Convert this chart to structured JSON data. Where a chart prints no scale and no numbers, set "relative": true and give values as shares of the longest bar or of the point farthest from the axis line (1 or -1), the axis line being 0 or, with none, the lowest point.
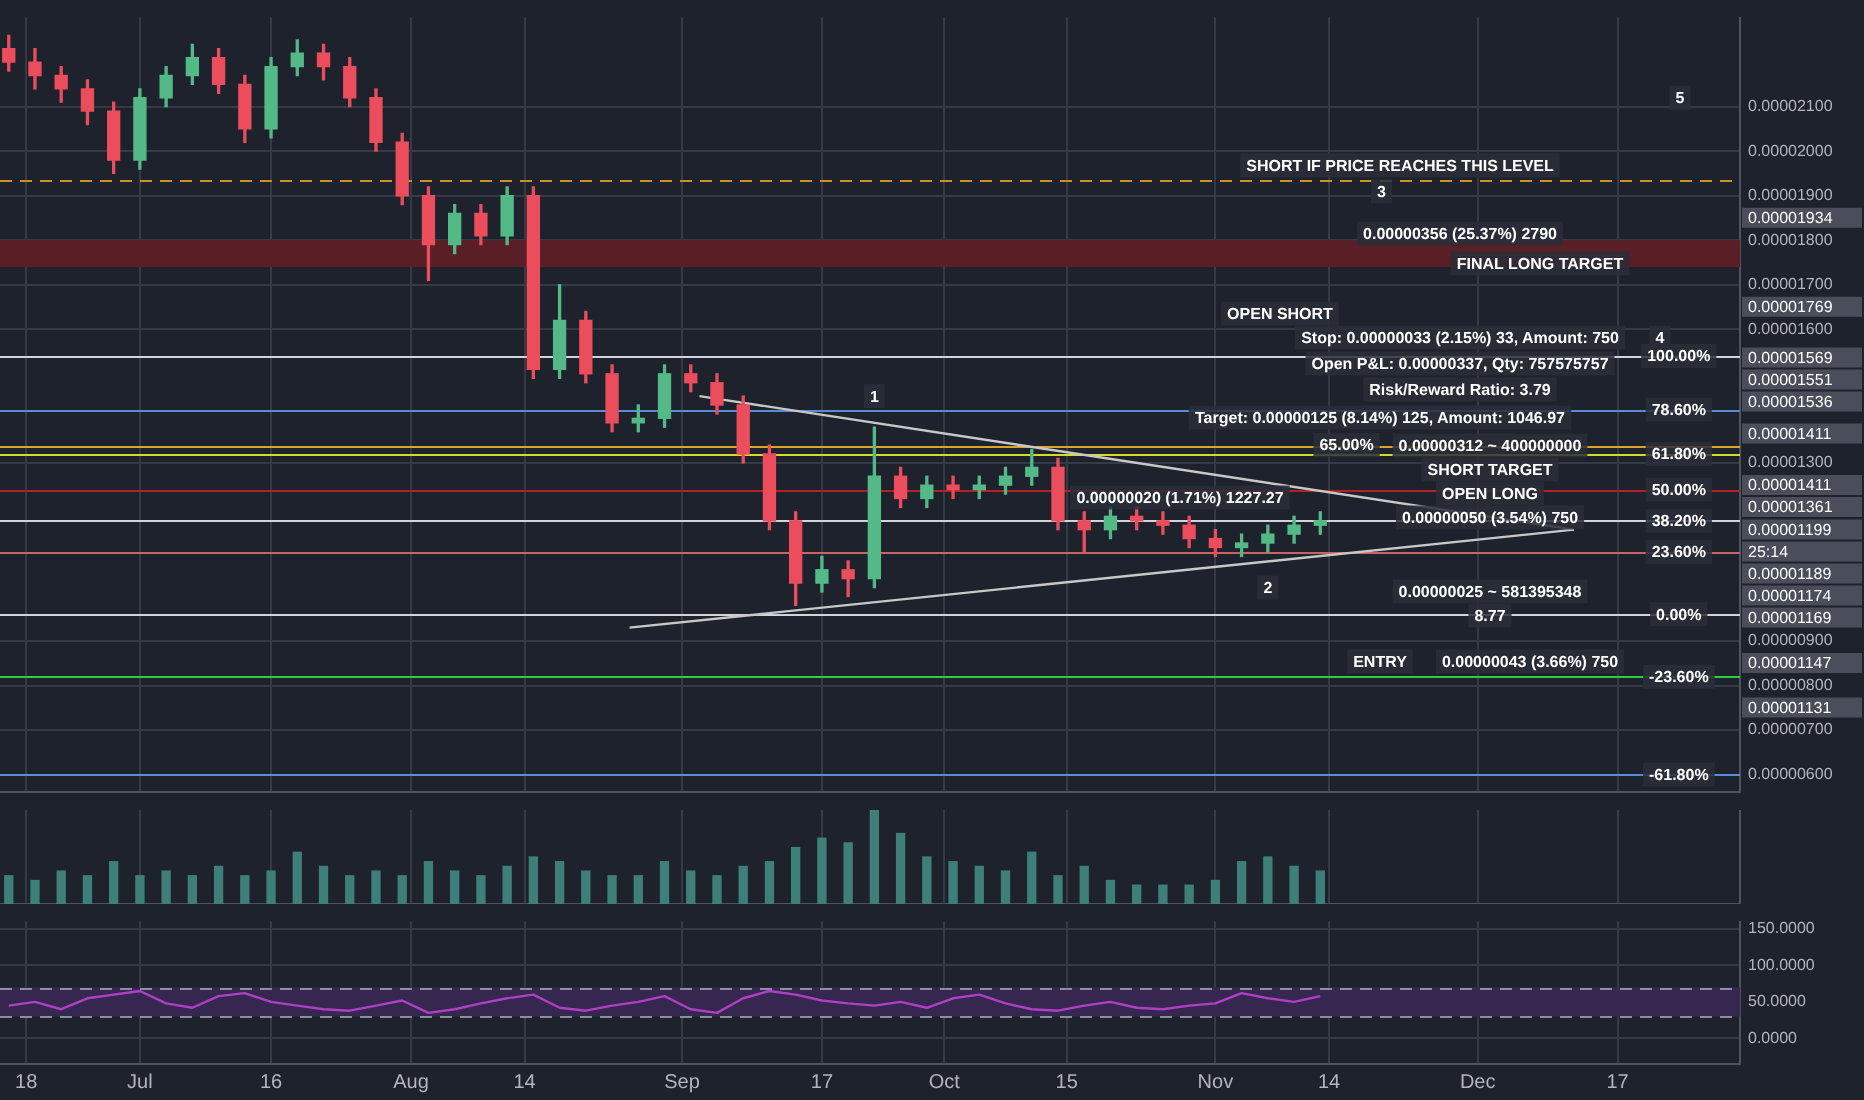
{
  "chart_data": [
    {
      "type": "candlestick",
      "x": [
        "--06-16",
        "--06-19",
        "--06-22",
        "--06-25",
        "--06-28",
        "--07-01",
        "--07-04",
        "--07-07",
        "--07-10",
        "--07-13",
        "--07-16",
        "--07-19",
        "--07-22",
        "--07-25",
        "--07-28",
        "--07-31",
        "--08-03",
        "--08-06",
        "--08-09",
        "--08-12",
        "--08-15",
        "--08-18",
        "--08-21",
        "--08-24",
        "--08-27",
        "--08-30",
        "--09-02",
        "--09-05",
        "--09-08",
        "--09-11",
        "--09-14",
        "--09-17",
        "--09-20",
        "--09-23",
        "--09-26",
        "--09-29",
        "--10-02",
        "--10-05",
        "--10-08",
        "--10-11",
        "--10-14",
        "--10-17",
        "--10-20",
        "--10-23",
        "--10-26",
        "--10-29",
        "--11-01",
        "--11-04",
        "--11-07",
        "--11-10",
        "--11-13"
      ],
      "ohlc": [
        [
          2.23e-05,
          2.26e-05,
          2.18e-05,
          2.2e-05
        ],
        [
          2.2e-05,
          2.23e-05,
          2.14e-05,
          2.17e-05
        ],
        [
          2.17e-05,
          2.19e-05,
          2.11e-05,
          2.14e-05
        ],
        [
          2.14e-05,
          2.16e-05,
          2.06e-05,
          2.09e-05
        ],
        [
          2.09e-05,
          2.11e-05,
          1.95e-05,
          1.98e-05
        ],
        [
          1.98e-05,
          2.14e-05,
          1.96e-05,
          2.12e-05
        ],
        [
          2.12e-05,
          2.19e-05,
          2.1e-05,
          2.17e-05
        ],
        [
          2.17e-05,
          2.24e-05,
          2.15e-05,
          2.21e-05
        ],
        [
          2.21e-05,
          2.23e-05,
          2.13e-05,
          2.15e-05
        ],
        [
          2.15e-05,
          2.17e-05,
          2.02e-05,
          2.05e-05
        ],
        [
          2.05e-05,
          2.21e-05,
          2.03e-05,
          2.19e-05
        ],
        [
          2.19e-05,
          2.25e-05,
          2.17e-05,
          2.22e-05
        ],
        [
          2.22e-05,
          2.24e-05,
          2.16e-05,
          2.19e-05
        ],
        [
          2.19e-05,
          2.21e-05,
          2.1e-05,
          2.12e-05
        ],
        [
          2.12e-05,
          2.14e-05,
          2e-05,
          2.02e-05
        ],
        [
          2.02e-05,
          2.04e-05,
          1.88e-05,
          1.9e-05
        ],
        [
          1.9e-05,
          1.92e-05,
          1.71e-05,
          1.79e-05
        ],
        [
          1.79e-05,
          1.88e-05,
          1.77e-05,
          1.86e-05
        ],
        [
          1.86e-05,
          1.88e-05,
          1.79e-05,
          1.81e-05
        ],
        [
          1.81e-05,
          1.92e-05,
          1.79e-05,
          1.9e-05
        ],
        [
          1.9e-05,
          1.92e-05,
          1.49e-05,
          1.51e-05
        ],
        [
          1.51e-05,
          1.7e-05,
          1.49e-05,
          1.62e-05
        ],
        [
          1.62e-05,
          1.64e-05,
          1.48e-05,
          1.5e-05
        ],
        [
          1.5e-05,
          1.52e-05,
          1.37e-05,
          1.39e-05
        ],
        [
          1.39e-05,
          1.43e-05,
          1.37e-05,
          1.4e-05
        ],
        [
          1.4e-05,
          1.52e-05,
          1.38e-05,
          1.5e-05
        ],
        [
          1.5e-05,
          1.52e-05,
          1.46e-05,
          1.48e-05
        ],
        [
          1.48e-05,
          1.5e-05,
          1.41e-05,
          1.43e-05
        ],
        [
          1.43e-05,
          1.45e-05,
          1.3e-05,
          1.32e-05
        ],
        [
          1.32e-05,
          1.34e-05,
          1.15e-05,
          1.17e-05
        ],
        [
          1.17e-05,
          1.19e-05,
          9.8e-06,
          1.03e-05
        ],
        [
          1.03e-05,
          1.09e-05,
          1.01e-05,
          1.06e-05
        ],
        [
          1.06e-05,
          1.08e-05,
          1e-05,
          1.04e-05
        ],
        [
          1.04e-05,
          1.38e-05,
          1.02e-05,
          1.27e-05
        ],
        [
          1.27e-05,
          1.29e-05,
          1.2e-05,
          1.22e-05
        ],
        [
          1.22e-05,
          1.27e-05,
          1.2e-05,
          1.25e-05
        ],
        [
          1.25e-05,
          1.27e-05,
          1.22e-05,
          1.24e-05
        ],
        [
          1.24e-05,
          1.27e-05,
          1.22e-05,
          1.25e-05
        ],
        [
          1.25e-05,
          1.29e-05,
          1.23e-05,
          1.27e-05
        ],
        [
          1.27e-05,
          1.33e-05,
          1.25e-05,
          1.29e-05
        ],
        [
          1.29e-05,
          1.31e-05,
          1.15e-05,
          1.17e-05
        ],
        [
          1.17e-05,
          1.19e-05,
          1.1e-05,
          1.15e-05
        ],
        [
          1.15e-05,
          1.2e-05,
          1.13e-05,
          1.18e-05
        ],
        [
          1.18e-05,
          1.2e-05,
          1.15e-05,
          1.17e-05
        ],
        [
          1.17e-05,
          1.19e-05,
          1.14e-05,
          1.16e-05
        ],
        [
          1.16e-05,
          1.18e-05,
          1.11e-05,
          1.13e-05
        ],
        [
          1.13e-05,
          1.15e-05,
          1.09e-05,
          1.11e-05
        ],
        [
          1.11e-05,
          1.14e-05,
          1.09e-05,
          1.12e-05
        ],
        [
          1.12e-05,
          1.16e-05,
          1.1e-05,
          1.14e-05
        ],
        [
          1.14e-05,
          1.18e-05,
          1.12e-05,
          1.16e-05
        ],
        [
          1.16e-05,
          1.19e-05,
          1.14e-05,
          1.17e-05
        ]
      ],
      "series": [
        {
          "type": "line",
          "x": [
            "--09-03",
            "--12-12"
          ],
          "values": [
            1.45e-05,
            1.15e-05
          ],
          "color": "#c8c8c8"
        },
        {
          "type": "line",
          "x": [
            "--08-26",
            "--12-12"
          ],
          "values": [
            9.3e-06,
            1.15e-05
          ],
          "color": "#c8c8c8"
        }
      ],
      "xlim": [
        "--06-15",
        "--12-31"
      ],
      "xticks": [
        {
          "value": "--06-18",
          "label": null
        },
        {
          "value": "--07-01",
          "label": null
        },
        {
          "value": "--07-16",
          "label": null
        },
        {
          "value": "--08-01",
          "label": null
        },
        {
          "value": "--08-14",
          "label": null
        },
        {
          "value": "--09-01",
          "label": null
        },
        {
          "value": "--09-17",
          "label": null
        },
        {
          "value": "--10-01",
          "label": null
        },
        {
          "value": "--10-15",
          "label": null
        },
        {
          "value": "--11-01",
          "label": null
        },
        {
          "value": "--11-14",
          "label": null
        },
        {
          "value": "--12-01",
          "label": null
        },
        {
          "value": "--12-17",
          "label": null
        }
      ],
      "ylim": [
        5.6e-06,
        2.3e-05
      ],
      "yticks": [
        {
          "value": 2.1e-05,
          "label": "0.00002100"
        },
        {
          "value": 2e-05,
          "label": "0.00002000"
        },
        {
          "value": 1.9e-05,
          "label": "0.00001900"
        },
        {
          "value": 1.8e-05,
          "label": "0.00001800"
        },
        {
          "value": 1.7e-05,
          "label": "0.00001700"
        },
        {
          "value": 1.6e-05,
          "label": "0.00001600"
        },
        {
          "value": 1.3e-05,
          "label": "0.00001300"
        },
        {
          "value": 9e-06,
          "label": "0.00000900"
        },
        {
          "value": 8e-06,
          "label": "0.00000800"
        },
        {
          "value": 7e-06,
          "label": "0.00000700"
        },
        {
          "value": 6e-06,
          "label": "0.00000600"
        }
      ],
      "grid": true,
      "tick_labels": "y",
      "ref_lines": [
        {
          "axis": "y",
          "value": 1.934e-05,
          "color": "#c8912a",
          "line_style": "dashed"
        },
        {
          "axis": "y",
          "value": 1.54e-05,
          "color": "#d1d4dc"
        },
        {
          "axis": "y",
          "value": 1.42e-05,
          "color": "#5b8bd0"
        },
        {
          "axis": "y",
          "value": 1.34e-05,
          "color": "#d9a62a"
        },
        {
          "axis": "y",
          "value": 1.32e-05,
          "color": "#d9d92a"
        },
        {
          "axis": "y",
          "value": 1.24e-05,
          "color": "#b22222"
        },
        {
          "axis": "y",
          "value": 1.17e-05,
          "color": "#d1d4dc"
        },
        {
          "axis": "y",
          "value": 1.1e-05,
          "color": "#c86464"
        },
        {
          "axis": "y",
          "value": 9.6e-06,
          "color": "#d1d4dc"
        },
        {
          "axis": "y",
          "value": 8.2e-06,
          "color": "#2ecc40"
        },
        {
          "axis": "y",
          "value": 6e-06,
          "color": "#5b8bd0"
        }
      ],
      "bands": [
        {
          "axis": "y",
          "from": 1.74e-05,
          "to": 1.8e-05,
          "color": "#5a1e27"
        }
      ],
      "annotations": [
        {
          "text": "100.00%",
          "x": "--12-24",
          "y": 1.54e-05
        },
        {
          "text": "78.60%",
          "x": "--12-24",
          "y": 1.42e-05
        },
        {
          "text": "65.00%",
          "x": "--11-16",
          "y": 1.34e-05
        },
        {
          "text": "61.80%",
          "x": "--12-24",
          "y": 1.32e-05
        },
        {
          "text": "50.00%",
          "x": "--12-24",
          "y": 1.24e-05
        },
        {
          "text": "38.20%",
          "x": "--12-24",
          "y": 1.17e-05
        },
        {
          "text": "23.60%",
          "x": "--12-24",
          "y": 1.1e-05
        },
        {
          "text": "0.00%",
          "x": "--12-24",
          "y": 9.6e-06
        },
        {
          "text": "-23.60%",
          "x": "--12-24",
          "y": 8.2e-06
        },
        {
          "text": "-61.80%",
          "x": "--12-24",
          "y": 6e-06
        },
        {
          "text": "3",
          "x": "--11-20",
          "y": 1.91e-05
        },
        {
          "text": "1",
          "x": "--09-23",
          "y": 1.45e-05
        },
        {
          "text": "2",
          "x": "--11-07",
          "y": 1.02e-05
        },
        "SHORT IF PRICE REACHES THIS LEVEL",
        "0.00000356 (25.37%) 2790",
        "FINAL LONG TARGET",
        "5",
        "4",
        "OPEN SHORT",
        "Stop: 0.00000033 (2.15%) 33, Amount: 750",
        "Open P&L: 0.00000337, Qty: 757575757",
        "Risk/Reward Ratio: 3.79",
        "Target: 0.00000125 (8.14%) 125, Amount: 1046.97",
        "0.00000312 ~ 400000000",
        "SHORT TARGET",
        "OPEN LONG",
        "0.00000050 (3.54%) 750",
        "0.00000020 (1.71%) 1227.27",
        "0.00000025 ~ 581395348",
        "8.77",
        "ENTRY",
        "0.00000043 (3.66%) 750",
        "0.00001934",
        "0.00001769",
        "0.00001569",
        "0.00001551",
        "0.00001536",
        "0.00001411",
        "0.00001411",
        "0.00001361",
        "0.00001199",
        "25:14",
        "0.00001189",
        "0.00001174",
        "0.00001169",
        "0.00001147",
        "0.00001131"
      ]
    },
    {
      "type": "bar",
      "relative": true,
      "color": "#3f7f7a",
      "x": [
        "--06-16",
        "--06-19",
        "--06-22",
        "--06-25",
        "--06-28",
        "--07-01",
        "--07-04",
        "--07-07",
        "--07-10",
        "--07-13",
        "--07-16",
        "--07-19",
        "--07-22",
        "--07-25",
        "--07-28",
        "--07-31",
        "--08-03",
        "--08-06",
        "--08-09",
        "--08-12",
        "--08-15",
        "--08-18",
        "--08-21",
        "--08-24",
        "--08-27",
        "--08-30",
        "--09-02",
        "--09-05",
        "--09-08",
        "--09-11",
        "--09-14",
        "--09-17",
        "--09-20",
        "--09-23",
        "--09-26",
        "--09-29",
        "--10-02",
        "--10-05",
        "--10-08",
        "--10-11",
        "--10-14",
        "--10-17",
        "--10-20",
        "--10-23",
        "--10-26",
        "--10-29",
        "--11-01",
        "--11-04",
        "--11-07",
        "--11-10",
        "--11-13"
      ],
      "values": [
        0.3,
        0.25,
        0.35,
        0.3,
        0.45,
        0.3,
        0.35,
        0.3,
        0.4,
        0.3,
        0.35,
        0.55,
        0.4,
        0.3,
        0.35,
        0.3,
        0.45,
        0.35,
        0.3,
        0.4,
        0.5,
        0.45,
        0.35,
        0.3,
        0.3,
        0.45,
        0.35,
        0.3,
        0.4,
        0.45,
        0.6,
        0.7,
        0.65,
        1,
        0.75,
        0.5,
        0.45,
        0.4,
        0.35,
        0.55,
        0.3,
        0.4,
        0.25,
        0.2,
        0.2,
        0.2,
        0.25,
        0.45,
        0.5,
        0.4,
        0.35
      ],
      "xlim": [
        "--06-15",
        "--12-31"
      ],
      "xticks": [
        {
          "value": "--06-18",
          "label": null
        },
        {
          "value": "--07-01",
          "label": null
        },
        {
          "value": "--07-16",
          "label": null
        },
        {
          "value": "--08-01",
          "label": null
        },
        {
          "value": "--08-14",
          "label": null
        },
        {
          "value": "--09-01",
          "label": null
        },
        {
          "value": "--09-17",
          "label": null
        },
        {
          "value": "--10-01",
          "label": null
        },
        {
          "value": "--10-15",
          "label": null
        },
        {
          "value": "--11-01",
          "label": null
        },
        {
          "value": "--11-14",
          "label": null
        },
        {
          "value": "--12-01",
          "label": null
        },
        {
          "value": "--12-17",
          "label": null
        }
      ],
      "grid": "x",
      "tick_labels": false
    },
    {
      "type": "line",
      "color": "#b03fc5",
      "x": [
        "--06-16",
        "--06-19",
        "--06-22",
        "--06-25",
        "--06-28",
        "--07-01",
        "--07-04",
        "--07-07",
        "--07-10",
        "--07-13",
        "--07-16",
        "--07-19",
        "--07-22",
        "--07-25",
        "--07-28",
        "--07-31",
        "--08-03",
        "--08-06",
        "--08-09",
        "--08-12",
        "--08-15",
        "--08-18",
        "--08-21",
        "--08-24",
        "--08-27",
        "--08-30",
        "--09-02",
        "--09-05",
        "--09-08",
        "--09-11",
        "--09-14",
        "--09-17",
        "--09-20",
        "--09-23",
        "--09-26",
        "--09-29",
        "--10-02",
        "--10-05",
        "--10-08",
        "--10-11",
        "--10-14",
        "--10-17",
        "--10-20",
        "--10-23",
        "--10-26",
        "--10-29",
        "--11-01",
        "--11-04",
        "--11-07",
        "--11-10",
        "--11-13"
      ],
      "values": [
        45,
        50,
        40,
        55,
        60,
        65,
        48,
        42,
        58,
        62,
        50,
        45,
        40,
        38,
        45,
        52,
        35,
        40,
        48,
        55,
        60,
        42,
        38,
        45,
        50,
        58,
        40,
        35,
        55,
        65,
        60,
        52,
        48,
        45,
        50,
        42,
        55,
        60,
        48,
        40,
        38,
        45,
        50,
        42,
        40,
        45,
        48,
        62,
        55,
        50,
        58
      ],
      "xlim": [
        "--06-15",
        "--12-31"
      ],
      "xticks": [
        {
          "value": "--06-18",
          "label": "18"
        },
        {
          "value": "--07-01",
          "label": "Jul"
        },
        {
          "value": "--07-16",
          "label": "16"
        },
        {
          "value": "--08-01",
          "label": "Aug"
        },
        {
          "value": "--08-14",
          "label": "14"
        },
        {
          "value": "--09-01",
          "label": "Sep"
        },
        {
          "value": "--09-17",
          "label": "17"
        },
        {
          "value": "--10-01",
          "label": "Oct"
        },
        {
          "value": "--10-15",
          "label": "15"
        },
        {
          "value": "--11-01",
          "label": "Nov"
        },
        {
          "value": "--11-14",
          "label": "14"
        },
        {
          "value": "--12-01",
          "label": "Dec"
        },
        {
          "value": "--12-17",
          "label": "17"
        }
      ],
      "ylim": [
        -35,
        160
      ],
      "yticks": [
        {
          "value": 150,
          "label": "150.0000"
        },
        {
          "value": 100,
          "label": "100.0000"
        },
        {
          "value": 50,
          "label": "50.0000"
        },
        {
          "value": 0,
          "label": "0.0000"
        }
      ],
      "grid": true,
      "ref_lines": [
        {
          "axis": "y",
          "value": 70,
          "color": "#8a8fa0",
          "line_style": "dashed"
        },
        {
          "axis": "y",
          "value": 30,
          "color": "#8a8fa0",
          "line_style": "dashed"
        }
      ],
      "bands": [
        {
          "axis": "y",
          "from": 30,
          "to": 70,
          "color": "#35274f"
        }
      ]
    }
  ]
}
